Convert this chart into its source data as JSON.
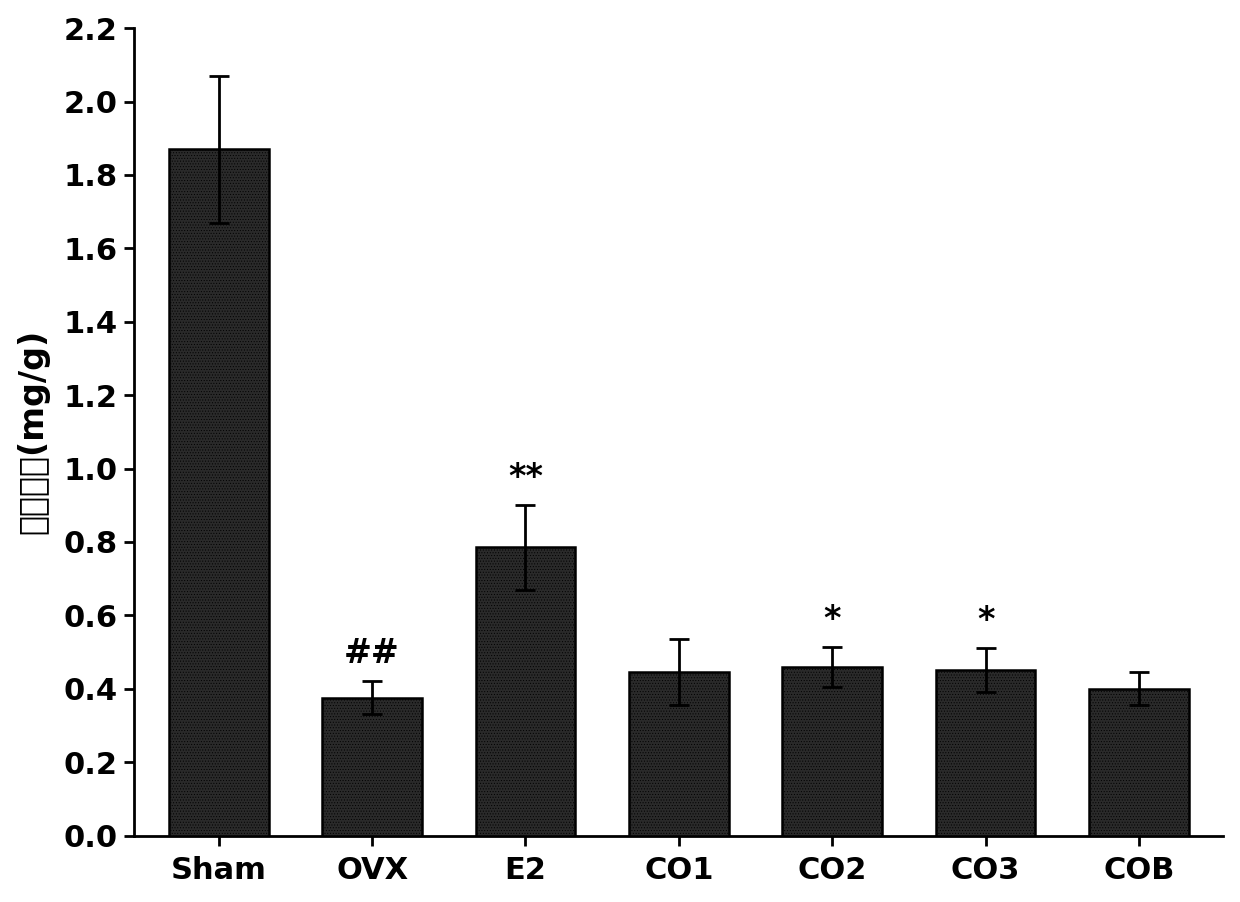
{
  "categories": [
    "Sham",
    "OVX",
    "E2",
    "CO1",
    "CO2",
    "CO3",
    "COB"
  ],
  "values": [
    1.87,
    0.375,
    0.785,
    0.445,
    0.46,
    0.45,
    0.4
  ],
  "errors": [
    0.2,
    0.045,
    0.115,
    0.09,
    0.055,
    0.06,
    0.045
  ],
  "bar_color": "#2a2a2a",
  "bar_hatch": "......",
  "ylabel": "子宫系数(mg/g)",
  "ylim": [
    0,
    2.2
  ],
  "yticks": [
    0.0,
    0.2,
    0.4,
    0.6,
    0.8,
    1.0,
    1.2,
    1.4,
    1.6,
    1.8,
    2.0,
    2.2
  ],
  "annotations": [
    "",
    "##",
    "**",
    "",
    "*",
    "*",
    ""
  ],
  "background_color": "#ffffff",
  "tick_fontsize": 22,
  "label_fontsize": 24,
  "annotation_fontsize": 24,
  "bar_width": 0.65,
  "figsize": [
    12.4,
    9.02
  ],
  "dpi": 100
}
